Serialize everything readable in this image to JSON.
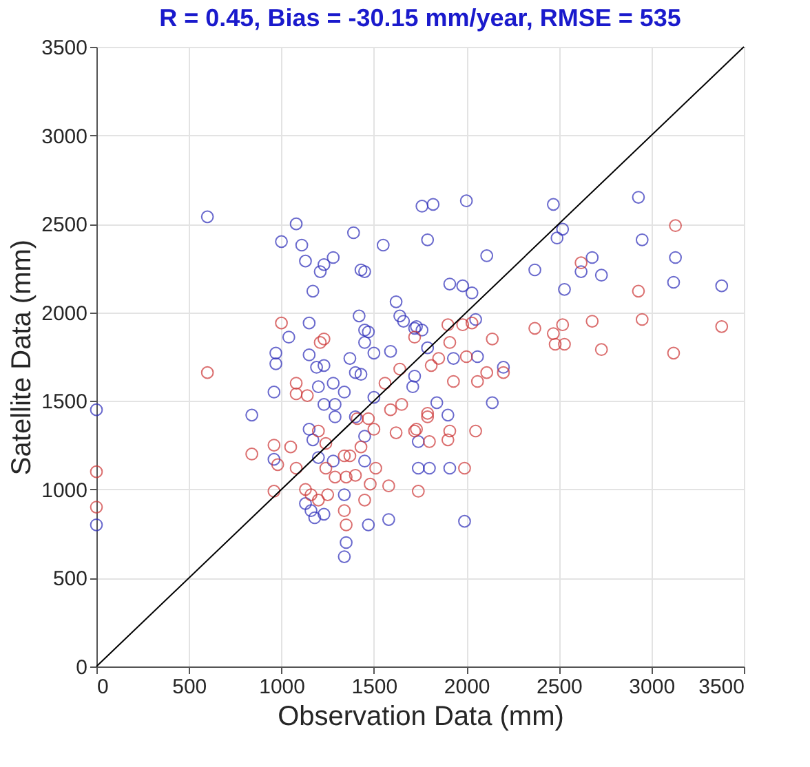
{
  "chart_data": {
    "type": "scatter",
    "title": "R = 0.45, Bias = -30.15 mm/year, RMSE = 535",
    "xlabel": "Observation Data (mm)",
    "ylabel": "Satellite Data (mm)",
    "xlim": [
      0,
      3500
    ],
    "ylim": [
      0,
      3500
    ],
    "xticks": [
      0,
      500,
      1000,
      1500,
      2000,
      2500,
      3000,
      3500
    ],
    "yticks": [
      0,
      500,
      1000,
      1500,
      2000,
      2500,
      3000,
      3500
    ],
    "grid": true,
    "marker": "circle",
    "series": [
      {
        "color": "#2b2bb8",
        "x": [
          0,
          0,
          600,
          1080,
          1000,
          1110,
          1390,
          1550,
          1130,
          1280,
          1210,
          1230,
          1430,
          1450,
          1170,
          1620,
          1640,
          1660,
          1730,
          1420,
          1150,
          1040,
          1450,
          1470,
          1450,
          1500,
          1590,
          1150,
          970,
          970,
          1370,
          1190,
          1230,
          1400,
          1430,
          960,
          1720,
          840,
          1760,
          1820,
          2000,
          2470,
          2930,
          2520,
          2490,
          1790,
          2950,
          2110,
          2680,
          3130,
          2370,
          2620,
          2730,
          3120,
          3380,
          2530,
          1910,
          1980,
          2030,
          2050,
          1720,
          1760,
          1790,
          1930,
          2060,
          2200,
          2140,
          1840,
          1900,
          1740,
          1800,
          1910,
          1990,
          1740,
          960,
          1150,
          1170,
          1130,
          1180,
          1230,
          1160,
          1350,
          1340,
          1340,
          1470,
          1580,
          1450,
          1450,
          1280,
          1500,
          1290,
          1400,
          1200,
          1200,
          1280,
          1340,
          1230,
          1290,
          1710
        ],
        "values": [
          1450,
          800,
          2540,
          2500,
          2400,
          2380,
          2450,
          2380,
          2290,
          2310,
          2230,
          2270,
          2240,
          2230,
          2120,
          2060,
          1980,
          1950,
          1920,
          1980,
          1940,
          1860,
          1900,
          1890,
          1830,
          1770,
          1780,
          1760,
          1770,
          1710,
          1740,
          1690,
          1700,
          1660,
          1650,
          1550,
          1640,
          1420,
          2600,
          2610,
          2630,
          2610,
          2650,
          2470,
          2420,
          2410,
          2410,
          2320,
          2310,
          2310,
          2240,
          2230,
          2210,
          2170,
          2150,
          2130,
          2160,
          2150,
          2110,
          1960,
          1910,
          1900,
          1800,
          1740,
          1750,
          1690,
          1490,
          1490,
          1420,
          1120,
          1120,
          1120,
          820,
          1270,
          1170,
          1340,
          1280,
          920,
          840,
          860,
          880,
          700,
          620,
          970,
          800,
          830,
          1300,
          1160,
          1160,
          1520,
          1410,
          1410,
          1180,
          1580,
          1600,
          1550,
          1480,
          1480,
          1580
        ]
      },
      {
        "color": "#cc3333",
        "x": [
          0,
          0,
          600,
          840,
          960,
          960,
          1050,
          980,
          1080,
          1200,
          1240,
          1130,
          1160,
          1250,
          1200,
          1350,
          1340,
          1450,
          1480,
          1580,
          1340,
          1370,
          1400,
          1350,
          1430,
          1500,
          1620,
          1730,
          1410,
          1470,
          1560,
          1640,
          1590,
          1650,
          1510,
          1740,
          1290,
          1240,
          1080,
          1140,
          1080,
          1000,
          1230,
          1210,
          1720,
          3130,
          2620,
          2930,
          2680,
          2950,
          3380,
          2370,
          2520,
          2470,
          2480,
          2530,
          2730,
          3120,
          1900,
          1980,
          2030,
          2140,
          1910,
          2000,
          2110,
          2200,
          1930,
          2060,
          1850,
          1810,
          1990,
          1900,
          1800,
          1910,
          2050,
          1790,
          1790,
          1720
        ],
        "values": [
          1100,
          900,
          1660,
          1200,
          1250,
          990,
          1240,
          1140,
          1600,
          1330,
          1260,
          1000,
          970,
          970,
          940,
          800,
          880,
          940,
          1030,
          1020,
          1190,
          1190,
          1080,
          1070,
          1240,
          1340,
          1320,
          1340,
          1400,
          1400,
          1600,
          1680,
          1450,
          1480,
          1120,
          990,
          1070,
          1120,
          1120,
          1530,
          1540,
          1940,
          1850,
          1830,
          1860,
          2490,
          2280,
          2120,
          1950,
          1960,
          1920,
          1910,
          1930,
          1880,
          1820,
          1820,
          1790,
          1770,
          1930,
          1930,
          1940,
          1850,
          1830,
          1750,
          1660,
          1660,
          1610,
          1610,
          1740,
          1700,
          1120,
          1280,
          1270,
          1330,
          1330,
          1430,
          1410,
          1330
        ]
      },
      {
        "type": "line",
        "marker": "none",
        "color": "#000000",
        "x": [
          0,
          3500
        ],
        "values": [
          0,
          3500
        ]
      }
    ]
  }
}
